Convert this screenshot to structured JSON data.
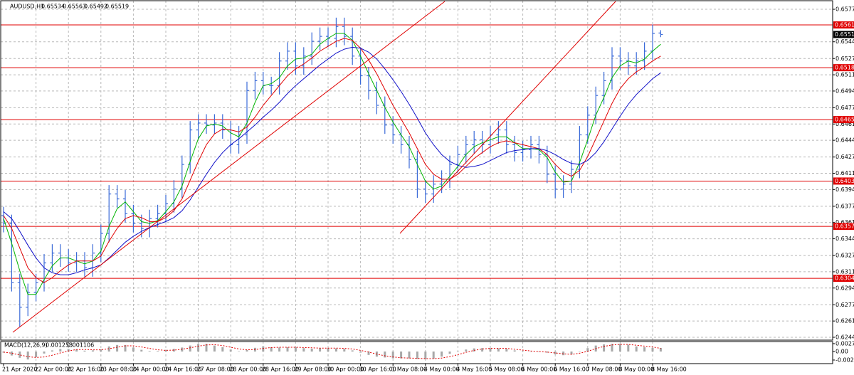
{
  "chart_data": {
    "type": "ohlc",
    "symbol": "AUDUSD,H1",
    "color": "#3b6bd8",
    "grid": true,
    "ylim": [
      0.62416,
      0.65862
    ],
    "yticks": [
      0.65775,
      0.65445,
      0.65275,
      {
        "value": 0.6511,
        "label": "0.65110"
      },
      0.64945,
      0.64775,
      {
        "value": 0.6461,
        "label": "0.64610"
      },
      0.64445,
      0.64275,
      {
        "value": 0.6411,
        "label": "0.64110"
      },
      0.63945,
      0.63775,
      {
        "value": 0.6361,
        "label": "0.63610"
      },
      0.63445,
      0.63275,
      {
        "value": 0.6311,
        "label": "0.63110"
      },
      0.62945,
      0.62775,
      {
        "value": 0.6261,
        "label": "0.62610"
      },
      0.62445
    ],
    "categories": [
      "21 Apr 2020",
      null,
      null,
      null,
      "22 Apr 00:00",
      null,
      null,
      null,
      "22 Apr 16:00",
      null,
      null,
      null,
      "23 Apr 08:00",
      null,
      null,
      null,
      "24 Apr 00:00",
      null,
      null,
      null,
      "24 Apr 16:00",
      null,
      null,
      null,
      "27 Apr 08:00",
      null,
      null,
      null,
      "28 Apr 00:00",
      null,
      null,
      null,
      "28 Apr 16:00",
      null,
      null,
      null,
      "29 Apr 08:00",
      null,
      null,
      null,
      "30 Apr 00:00",
      null,
      null,
      null,
      "30 Apr 16:00",
      null,
      null,
      null,
      "1 May 08:00",
      null,
      null,
      null,
      "4 May 00:00",
      null,
      null,
      null,
      "4 May 16:00",
      null,
      null,
      null,
      "5 May 08:00",
      null,
      null,
      null,
      "6 May 00:00",
      null,
      null,
      null,
      "6 May 16:00",
      null,
      null,
      null,
      "7 May 08:00",
      null,
      null,
      null,
      "8 May 00:00",
      null,
      null,
      null,
      "8 May 16:00",
      null
    ],
    "open": [
      0.6368,
      0.636,
      0.63,
      0.6275,
      0.629,
      0.63,
      0.632,
      0.633,
      0.6325,
      0.632,
      0.6322,
      0.6315,
      0.633,
      0.635,
      0.639,
      0.6385,
      0.637,
      0.636,
      0.6355,
      0.6365,
      0.637,
      0.638,
      0.6395,
      0.642,
      0.6455,
      0.6462,
      0.646,
      0.6462,
      0.6455,
      0.644,
      0.645,
      0.6495,
      0.6505,
      0.65,
      0.65,
      0.6525,
      0.6535,
      0.652,
      0.653,
      0.6545,
      0.655,
      0.6548,
      0.656,
      0.655,
      0.653,
      0.651,
      0.6495,
      0.648,
      0.646,
      0.645,
      0.644,
      0.6425,
      0.6395,
      0.639,
      0.64,
      0.6405,
      0.642,
      0.643,
      0.644,
      0.6445,
      0.644,
      0.645,
      0.6455,
      0.644,
      0.6432,
      0.6435,
      0.644,
      0.643,
      0.641,
      0.6395,
      0.64,
      0.6415,
      0.645,
      0.647,
      0.649,
      0.6505,
      0.653,
      0.6525,
      0.652,
      0.6525,
      0.6535,
      0.65534
    ],
    "high": [
      0.6377,
      0.6369,
      0.6309,
      0.6299,
      0.6309,
      0.6329,
      0.6339,
      0.6339,
      0.6334,
      0.6331,
      0.6331,
      0.6339,
      0.6359,
      0.6399,
      0.6399,
      0.6394,
      0.6379,
      0.6369,
      0.6374,
      0.6379,
      0.6389,
      0.6404,
      0.6429,
      0.6464,
      0.6471,
      0.6471,
      0.6471,
      0.6471,
      0.6464,
      0.6459,
      0.6504,
      0.6514,
      0.6514,
      0.6509,
      0.6534,
      0.6544,
      0.6544,
      0.6539,
      0.6554,
      0.6559,
      0.6559,
      0.6569,
      0.6569,
      0.6559,
      0.6539,
      0.6519,
      0.6504,
      0.6489,
      0.6469,
      0.6459,
      0.6449,
      0.6434,
      0.6404,
      0.6409,
      0.6414,
      0.6429,
      0.6439,
      0.6449,
      0.6454,
      0.6454,
      0.6459,
      0.6464,
      0.6464,
      0.6449,
      0.6444,
      0.6449,
      0.6449,
      0.6439,
      0.6419,
      0.6409,
      0.6424,
      0.6459,
      0.6479,
      0.6499,
      0.6514,
      0.6539,
      0.6539,
      0.6534,
      0.6534,
      0.6544,
      0.6562,
      0.65563
    ],
    "low": [
      0.6351,
      0.6291,
      0.6255,
      0.6266,
      0.6281,
      0.6291,
      0.6311,
      0.6316,
      0.6311,
      0.6311,
      0.6306,
      0.6306,
      0.6321,
      0.6341,
      0.6376,
      0.6361,
      0.6351,
      0.6346,
      0.6346,
      0.6356,
      0.6361,
      0.6371,
      0.6386,
      0.6411,
      0.6446,
      0.6451,
      0.6451,
      0.6446,
      0.6431,
      0.6431,
      0.6441,
      0.6486,
      0.6491,
      0.6491,
      0.6491,
      0.6516,
      0.6511,
      0.6511,
      0.6521,
      0.6536,
      0.6539,
      0.6539,
      0.6541,
      0.6521,
      0.6501,
      0.6486,
      0.6471,
      0.6451,
      0.6441,
      0.6431,
      0.6416,
      0.6386,
      0.6381,
      0.6381,
      0.6391,
      0.6396,
      0.6411,
      0.6421,
      0.6431,
      0.6431,
      0.6431,
      0.6441,
      0.6431,
      0.6423,
      0.6423,
      0.6426,
      0.6421,
      0.6401,
      0.6386,
      0.6386,
      0.6391,
      0.6406,
      0.6441,
      0.6461,
      0.6481,
      0.6496,
      0.6516,
      0.6511,
      0.6511,
      0.6516,
      0.6526,
      0.65492
    ],
    "close": [
      0.636,
      0.63,
      0.6275,
      0.629,
      0.63,
      0.632,
      0.633,
      0.6325,
      0.632,
      0.6322,
      0.6315,
      0.633,
      0.635,
      0.639,
      0.6385,
      0.637,
      0.636,
      0.6355,
      0.6365,
      0.637,
      0.638,
      0.6395,
      0.642,
      0.6455,
      0.6462,
      0.646,
      0.6462,
      0.6455,
      0.644,
      0.645,
      0.6495,
      0.6505,
      0.65,
      0.65,
      0.6525,
      0.6535,
      0.652,
      0.653,
      0.6545,
      0.655,
      0.6548,
      0.656,
      0.655,
      0.653,
      0.651,
      0.6495,
      0.648,
      0.646,
      0.645,
      0.644,
      0.6425,
      0.6395,
      0.639,
      0.64,
      0.6405,
      0.642,
      0.643,
      0.644,
      0.6445,
      0.644,
      0.645,
      0.6455,
      0.644,
      0.6432,
      0.6435,
      0.644,
      0.643,
      0.641,
      0.6395,
      0.64,
      0.6415,
      0.645,
      0.647,
      0.649,
      0.6505,
      0.653,
      0.6525,
      0.652,
      0.6525,
      0.6535,
      0.6553,
      0.65519
    ],
    "current_color": "#000000",
    "series": [
      {
        "color": "#00b400",
        "values": [
          0.6365,
          0.634,
          0.6312,
          0.6288,
          0.6288,
          0.6303,
          0.6317,
          0.6325,
          0.6325,
          0.6322,
          0.6319,
          0.6322,
          0.6332,
          0.6357,
          0.6375,
          0.6382,
          0.6372,
          0.6362,
          0.636,
          0.6363,
          0.6372,
          0.6382,
          0.6398,
          0.6423,
          0.6446,
          0.6459,
          0.6461,
          0.6459,
          0.6452,
          0.6448,
          0.6462,
          0.6483,
          0.65,
          0.6502,
          0.6508,
          0.652,
          0.6527,
          0.6528,
          0.6532,
          0.6542,
          0.6548,
          0.6553,
          0.6553,
          0.6546,
          0.653,
          0.6512,
          0.6495,
          0.6478,
          0.6463,
          0.645,
          0.6438,
          0.642,
          0.6403,
          0.6395,
          0.6398,
          0.6408,
          0.6418,
          0.643,
          0.6438,
          0.6442,
          0.6445,
          0.6448,
          0.6448,
          0.6442,
          0.6436,
          0.6436,
          0.6435,
          0.6427,
          0.6412,
          0.6402,
          0.6403,
          0.6422,
          0.6445,
          0.647,
          0.6488,
          0.6508,
          0.652,
          0.6525,
          0.6523,
          0.6527,
          0.6535,
          0.6542
        ]
      },
      {
        "color": "#e00000",
        "values": [
          0.6368,
          0.6355,
          0.6335,
          0.6315,
          0.6305,
          0.63,
          0.6305,
          0.6312,
          0.6318,
          0.6322,
          0.6322,
          0.6322,
          0.6327,
          0.6342,
          0.6355,
          0.6365,
          0.6368,
          0.6366,
          0.6362,
          0.6362,
          0.6366,
          0.6373,
          0.6385,
          0.6404,
          0.6423,
          0.644,
          0.6451,
          0.6456,
          0.6455,
          0.6453,
          0.6458,
          0.6468,
          0.648,
          0.649,
          0.65,
          0.651,
          0.6517,
          0.6522,
          0.6528,
          0.6535,
          0.654,
          0.6545,
          0.6548,
          0.6546,
          0.6538,
          0.6526,
          0.6512,
          0.6496,
          0.648,
          0.6466,
          0.6452,
          0.6436,
          0.642,
          0.641,
          0.6405,
          0.6405,
          0.641,
          0.6418,
          0.6426,
          0.6432,
          0.6438,
          0.6442,
          0.6444,
          0.6442,
          0.644,
          0.6438,
          0.6436,
          0.643,
          0.642,
          0.6412,
          0.6408,
          0.6414,
          0.6428,
          0.6446,
          0.6464,
          0.6482,
          0.6497,
          0.6507,
          0.6514,
          0.6519,
          0.6525,
          0.653
        ]
      },
      {
        "color": "#1010c8",
        "values": [
          0.6372,
          0.6365,
          0.6352,
          0.6338,
          0.6325,
          0.6315,
          0.631,
          0.6308,
          0.6308,
          0.631,
          0.6313,
          0.6315,
          0.6318,
          0.6325,
          0.6333,
          0.6341,
          0.6347,
          0.6352,
          0.6356,
          0.6359,
          0.6362,
          0.6366,
          0.6373,
          0.6384,
          0.6397,
          0.641,
          0.6422,
          0.6432,
          0.644,
          0.6446,
          0.6453,
          0.646,
          0.6468,
          0.6475,
          0.6483,
          0.6492,
          0.65,
          0.6507,
          0.6514,
          0.6521,
          0.6527,
          0.6533,
          0.6537,
          0.6539,
          0.6538,
          0.6534,
          0.6527,
          0.6517,
          0.6506,
          0.6494,
          0.6481,
          0.6467,
          0.6452,
          0.644,
          0.643,
          0.6423,
          0.6419,
          0.6417,
          0.6418,
          0.642,
          0.6424,
          0.6428,
          0.6432,
          0.6434,
          0.6435,
          0.6436,
          0.6436,
          0.6434,
          0.643,
          0.6425,
          0.6421,
          0.642,
          0.6424,
          0.6432,
          0.6443,
          0.6456,
          0.6469,
          0.6481,
          0.6491,
          0.6499,
          0.6507,
          0.6513
        ]
      }
    ],
    "levels": {
      "color": "#e00000",
      "values": [
        0.65616,
        0.65182,
        0.64655,
        0.64031,
        0.63571,
        0.63044
      ]
    },
    "macd": {
      "type": "macd",
      "title": "MACD(12,26,9)",
      "ylim": [
        -0.00425,
        0.0035
      ],
      "yticks": [
        0.002762,
        {
          "value": 0,
          "label": "0.00"
        },
        -0.00299
      ],
      "histogram_color": "#a8a8a8",
      "signal_color": "#e00000",
      "histogram": [
        -0.0004,
        -0.0014,
        -0.0022,
        -0.0028,
        -0.002,
        -0.0007,
        0.0004,
        0.0009,
        0.0009,
        0.0007,
        0.0003,
        0.0004,
        0.0008,
        0.0018,
        0.0023,
        0.0023,
        0.0014,
        0.0006,
        0.0002,
        0.0002,
        0.0006,
        0.0009,
        0.0014,
        0.0021,
        0.0027,
        0.0027,
        0.0021,
        0.0015,
        0.0007,
        0.0001,
        0.0005,
        0.0013,
        0.0018,
        0.0015,
        0.0014,
        0.0015,
        0.0015,
        0.0012,
        0.001,
        0.0012,
        0.0012,
        0.0011,
        0.0009,
        0.0004,
        -0.0004,
        -0.0012,
        -0.0018,
        -0.0021,
        -0.0024,
        -0.0024,
        -0.0024,
        -0.0026,
        -0.0027,
        -0.0025,
        -0.0018,
        -0.0008,
        -0.0001,
        0.0007,
        0.0011,
        0.0012,
        0.0012,
        0.0011,
        0.0009,
        0.0004,
        0.0001,
        0.0,
        -0.0001,
        -0.0004,
        -0.001,
        -0.0013,
        -0.001,
        0.0001,
        0.0012,
        0.0021,
        0.0025,
        0.0027,
        0.0027,
        0.0024,
        0.0018,
        0.0015,
        0.0013,
        0.001253
      ],
      "signal": [
        -0.0002,
        -0.0006,
        -0.0012,
        -0.0018,
        -0.0021,
        -0.0019,
        -0.0013,
        -0.0005,
        0.0002,
        0.0007,
        0.0007,
        0.0006,
        0.0006,
        0.001,
        0.0015,
        0.002,
        0.002,
        0.0016,
        0.0011,
        0.0006,
        0.0004,
        0.0005,
        0.0008,
        0.0013,
        0.0019,
        0.0023,
        0.0024,
        0.0021,
        0.0015,
        0.0009,
        0.0006,
        0.0007,
        0.0011,
        0.0014,
        0.0015,
        0.0015,
        0.0015,
        0.0014,
        0.0013,
        0.0012,
        0.0012,
        0.0012,
        0.0011,
        0.0009,
        0.0004,
        -0.0002,
        -0.0009,
        -0.0015,
        -0.0019,
        -0.0022,
        -0.0023,
        -0.0024,
        -0.0025,
        -0.0025,
        -0.0023,
        -0.0018,
        -0.0011,
        -0.0003,
        0.0004,
        0.0009,
        0.0011,
        0.0011,
        0.0011,
        0.0008,
        0.0005,
        0.0002,
        0.0,
        -0.0002,
        -0.0005,
        -0.0008,
        -0.001,
        -0.0006,
        0.0001,
        0.001,
        0.0018,
        0.0023,
        0.0025,
        0.0025,
        0.0022,
        0.0019,
        0.0016,
        0.001106
      ]
    }
  }
}
